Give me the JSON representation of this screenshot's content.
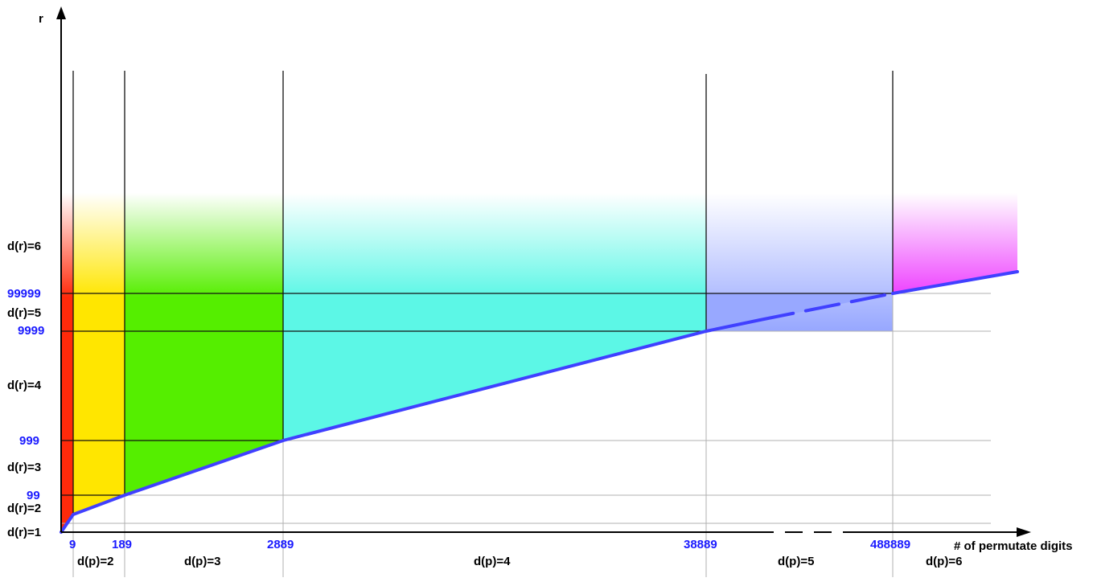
{
  "axes": {
    "y_label": "r",
    "x_label": "# of permutate digits"
  },
  "x_ticks": [
    "9",
    "189",
    "2889",
    "38889",
    "488889"
  ],
  "y_ticks": [
    "99",
    "999",
    "9999",
    "99999"
  ],
  "dp_labels": [
    "d(p)=2",
    "d(p)=3",
    "d(p)=4",
    "d(p)=5",
    "d(p)=6"
  ],
  "dr_labels": [
    "d(r)=1",
    "d(r)=2",
    "d(r)=3",
    "d(r)=4",
    "d(r)=5",
    "d(r)=6"
  ],
  "colors": {
    "red": "#ff2a0a",
    "yellow": "#ffe600",
    "green": "#55ee00",
    "cyan": "#5cf7e6",
    "blue": "#98a8ff",
    "magenta": "#ee44ff",
    "curve": "#4040ff",
    "tick_text": "#1a1aff"
  }
}
